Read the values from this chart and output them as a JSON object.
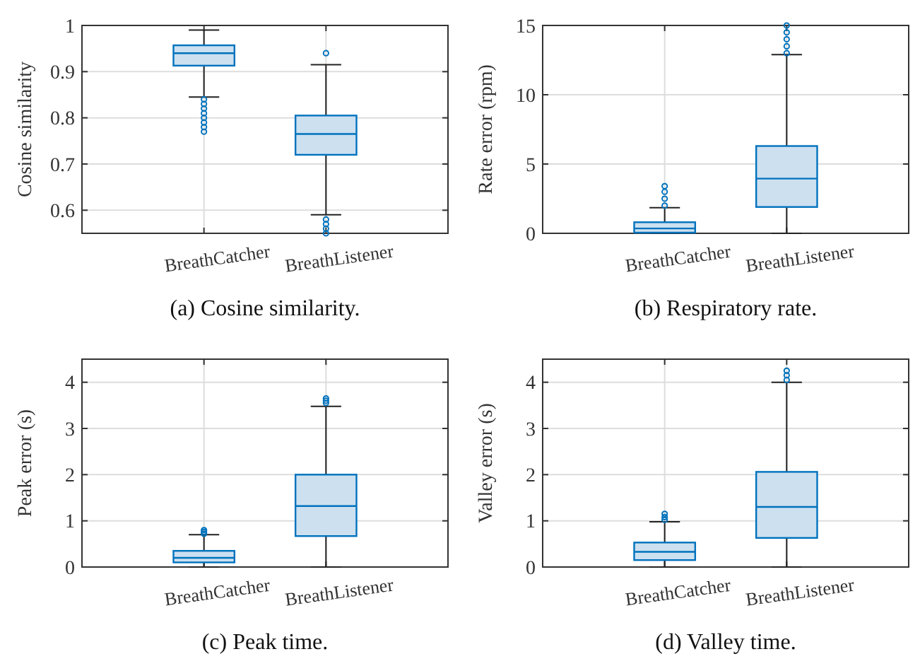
{
  "chart_data": [
    {
      "type": "box",
      "title": "(a) Cosine similarity.",
      "ylabel": "Cosine similarity",
      "categories": [
        "BreathCatcher",
        "BreathListener"
      ],
      "color": "#0072bd",
      "ylim": [
        0.55,
        1.0
      ],
      "yticks": [
        0.6,
        0.7,
        0.8,
        0.9,
        1
      ],
      "grid": true,
      "boxes": [
        {
          "low": 0.845,
          "q1": 0.913,
          "median": 0.94,
          "q3": 0.957,
          "high": 0.99,
          "outliers": [
            0.77,
            0.78,
            0.79,
            0.8,
            0.81,
            0.82,
            0.83,
            0.84
          ]
        },
        {
          "low": 0.59,
          "q1": 0.72,
          "median": 0.765,
          "q3": 0.805,
          "high": 0.915,
          "outliers": [
            0.94,
            0.58,
            0.57,
            0.56,
            0.55
          ]
        }
      ]
    },
    {
      "type": "box",
      "title": "(b) Respiratory rate.",
      "ylabel": "Rate error (rpm)",
      "categories": [
        "BreathCatcher",
        "BreathListener"
      ],
      "color": "#0072bd",
      "ylim": [
        0,
        15
      ],
      "yticks": [
        0,
        5,
        10,
        15
      ],
      "grid": true,
      "boxes": [
        {
          "low": 0,
          "q1": 0.05,
          "median": 0.35,
          "q3": 0.8,
          "high": 1.85,
          "outliers": [
            2.0,
            2.5,
            3.0,
            3.4
          ]
        },
        {
          "low": 0,
          "q1": 1.9,
          "median": 3.95,
          "q3": 6.3,
          "high": 12.9,
          "outliers": [
            13,
            13.5,
            14,
            14.5,
            15
          ]
        }
      ]
    },
    {
      "type": "box",
      "title": "(c) Peak time.",
      "ylabel": "Peak error (s)",
      "categories": [
        "BreathCatcher",
        "BreathListener"
      ],
      "color": "#0072bd",
      "ylim": [
        0,
        4.5
      ],
      "yticks": [
        0,
        1,
        2,
        3,
        4
      ],
      "grid": true,
      "boxes": [
        {
          "low": 0,
          "q1": 0.1,
          "median": 0.2,
          "q3": 0.35,
          "high": 0.7,
          "outliers": [
            0.72,
            0.76,
            0.8
          ]
        },
        {
          "low": 0,
          "q1": 0.67,
          "median": 1.32,
          "q3": 2.0,
          "high": 3.48,
          "outliers": [
            3.55,
            3.6,
            3.65
          ]
        }
      ]
    },
    {
      "type": "box",
      "title": "(d) Valley time.",
      "ylabel": "Valley error (s)",
      "categories": [
        "BreathCatcher",
        "BreathListener"
      ],
      "color": "#0072bd",
      "ylim": [
        0,
        4.5
      ],
      "yticks": [
        0,
        1,
        2,
        3,
        4
      ],
      "grid": true,
      "boxes": [
        {
          "low": 0,
          "q1": 0.15,
          "median": 0.33,
          "q3": 0.53,
          "high": 0.98,
          "outliers": [
            1.02,
            1.08,
            1.15
          ]
        },
        {
          "low": 0,
          "q1": 0.63,
          "median": 1.3,
          "q3": 2.06,
          "high": 4.0,
          "outliers": [
            4.05,
            4.15,
            4.25
          ]
        }
      ]
    }
  ]
}
